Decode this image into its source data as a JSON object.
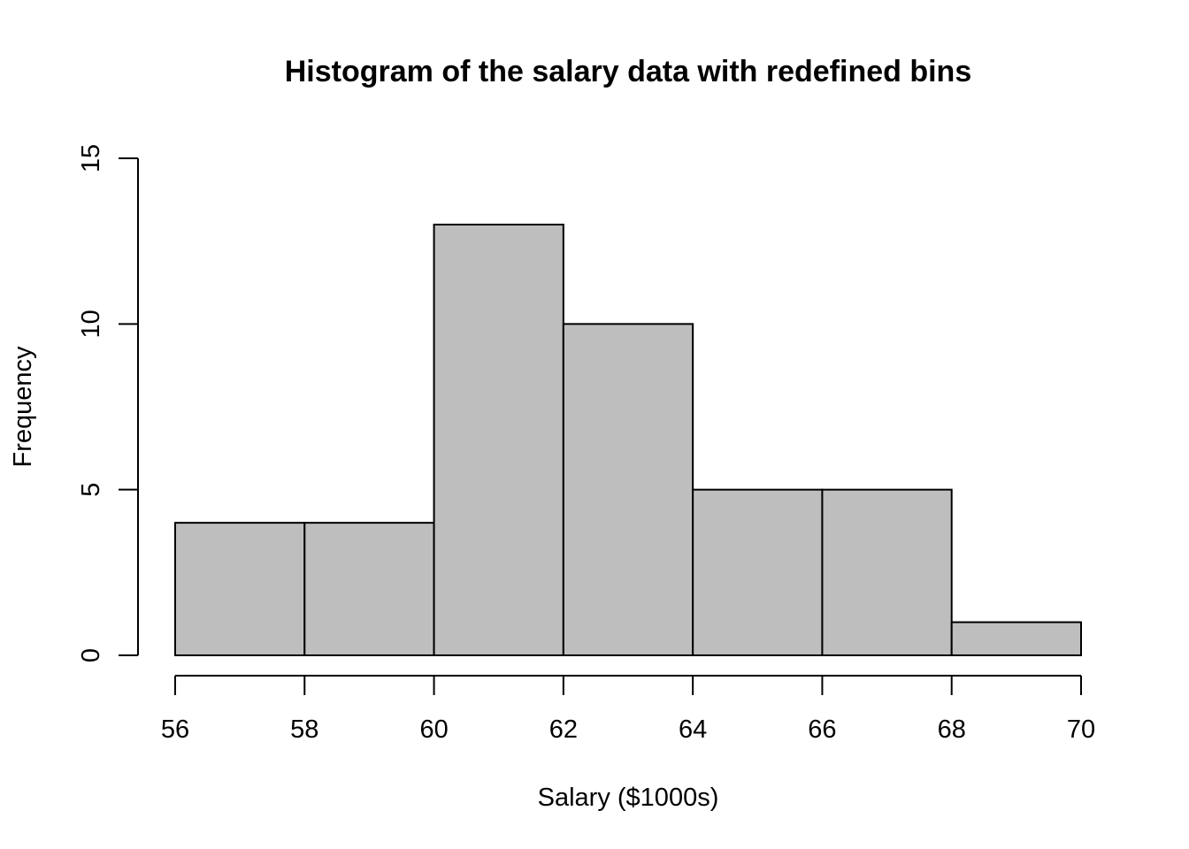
{
  "chart_data": {
    "type": "bar",
    "title": "Histogram of the salary data with redefined bins",
    "xlabel": "Salary ($1000s)",
    "ylabel": "Frequency",
    "xlim": [
      56,
      70
    ],
    "ylim": [
      0,
      15
    ],
    "bins": [
      {
        "from": 56,
        "to": 58,
        "count": 4
      },
      {
        "from": 58,
        "to": 60,
        "count": 4
      },
      {
        "from": 60,
        "to": 62,
        "count": 13
      },
      {
        "from": 62,
        "to": 64,
        "count": 10
      },
      {
        "from": 64,
        "to": 66,
        "count": 5
      },
      {
        "from": 66,
        "to": 68,
        "count": 5
      },
      {
        "from": 68,
        "to": 70,
        "count": 1
      }
    ],
    "x_ticks": [
      56,
      58,
      60,
      62,
      64,
      66,
      68,
      70
    ],
    "y_ticks": [
      0,
      5,
      10,
      15
    ],
    "bar_color": "#bebebe",
    "grid": false,
    "legend": "none"
  }
}
